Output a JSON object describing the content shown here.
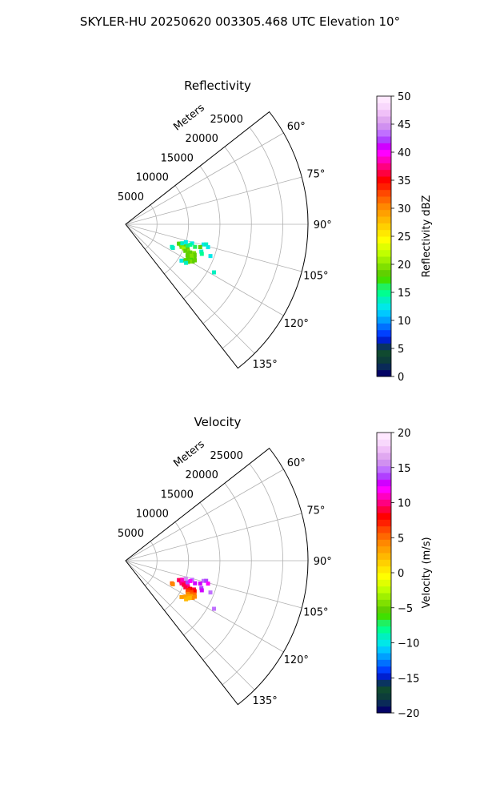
{
  "figure_title": "SKYLER-HU  20250620  003305.468 UTC Elevation 10°",
  "chart_data": [
    {
      "type": "scatter",
      "projection": "polar-sector",
      "title": "Reflectivity",
      "range_label": "Meters",
      "radial_ticks": [
        5000,
        10000,
        15000,
        20000,
        25000
      ],
      "radial_tick_labels": [
        "5000",
        "10000",
        "15000",
        "20000",
        "25000"
      ],
      "rmax": 29000,
      "theta_min_deg": 52,
      "theta_max_deg": 142,
      "theta_ticks": [
        60,
        75,
        90,
        105,
        120,
        135
      ],
      "theta_tick_labels": [
        "60°",
        "75°",
        "90°",
        "105°",
        "120°",
        "135°"
      ],
      "grid": true,
      "colorbar": {
        "label": "Reflectivity dBZ",
        "min": 0,
        "max": 50,
        "ticks": [
          0,
          5,
          10,
          15,
          20,
          25,
          30,
          35,
          40,
          45,
          50
        ],
        "tick_labels": [
          "0",
          "5",
          "10",
          "15",
          "20",
          "25",
          "30",
          "35",
          "40",
          "45",
          "50"
        ],
        "colors": [
          "#040466",
          "#0a2a58",
          "#0d3d3a",
          "#104a30",
          "#0a3460",
          "#0020d0",
          "#0040ff",
          "#0070ff",
          "#00a0ff",
          "#00c8ff",
          "#00e8e8",
          "#00f0c0",
          "#00ff90",
          "#20f060",
          "#40e000",
          "#60d000",
          "#80e000",
          "#a0f000",
          "#c0ff00",
          "#e0ff00",
          "#ffff00",
          "#ffe800",
          "#ffd000",
          "#ffb800",
          "#ffa000",
          "#ff8800",
          "#ff6800",
          "#ff4800",
          "#ff2000",
          "#ff0000",
          "#ff0040",
          "#ff0080",
          "#ff00c0",
          "#ff00ff",
          "#d000ff",
          "#b040ff",
          "#c070ff",
          "#d090f0",
          "#e0a8f0",
          "#f0c0f8",
          "#f8d8fc",
          "#ffe8ff"
        ]
      },
      "points": [
        {
          "az": 110.0,
          "r": 9000,
          "v": 18
        },
        {
          "az": 110.5,
          "r": 9400,
          "v": 19
        },
        {
          "az": 111.0,
          "r": 9800,
          "v": 20
        },
        {
          "az": 109.5,
          "r": 9200,
          "v": 17
        },
        {
          "az": 110.2,
          "r": 10200,
          "v": 18
        },
        {
          "az": 111.5,
          "r": 10600,
          "v": 19
        },
        {
          "az": 112.0,
          "r": 9600,
          "v": 20
        },
        {
          "az": 112.5,
          "r": 10000,
          "v": 21
        },
        {
          "az": 108.5,
          "r": 9500,
          "v": 14
        },
        {
          "az": 109.0,
          "r": 10400,
          "v": 16
        },
        {
          "az": 113.0,
          "r": 10800,
          "v": 20
        },
        {
          "az": 113.5,
          "r": 11200,
          "v": 19
        },
        {
          "az": 114.0,
          "r": 10400,
          "v": 18
        },
        {
          "az": 112.8,
          "r": 11800,
          "v": 20
        },
        {
          "az": 113.8,
          "r": 12000,
          "v": 19
        },
        {
          "az": 115.0,
          "r": 11000,
          "v": 18
        },
        {
          "az": 115.5,
          "r": 11600,
          "v": 20
        },
        {
          "az": 116.0,
          "r": 12200,
          "v": 19
        },
        {
          "az": 116.5,
          "r": 11000,
          "v": 18
        },
        {
          "az": 117.0,
          "r": 11800,
          "v": 20
        },
        {
          "az": 117.5,
          "r": 12400,
          "v": 19
        },
        {
          "az": 118.0,
          "r": 11200,
          "v": 18
        },
        {
          "az": 118.5,
          "r": 11800,
          "v": 17
        },
        {
          "az": 119.0,
          "r": 12200,
          "v": 19
        },
        {
          "az": 119.5,
          "r": 11400,
          "v": 18
        },
        {
          "az": 120.0,
          "r": 11800,
          "v": 20
        },
        {
          "az": 120.5,
          "r": 11200,
          "v": 17
        },
        {
          "az": 121.0,
          "r": 11600,
          "v": 19
        },
        {
          "az": 121.5,
          "r": 11000,
          "v": 18
        },
        {
          "az": 122.5,
          "r": 11400,
          "v": 14
        },
        {
          "az": 106.5,
          "r": 10000,
          "v": 12
        },
        {
          "az": 106.0,
          "r": 11000,
          "v": 13
        },
        {
          "az": 107.5,
          "r": 10800,
          "v": 15
        },
        {
          "az": 108.0,
          "r": 11600,
          "v": 16
        },
        {
          "az": 104.5,
          "r": 12800,
          "v": 12
        },
        {
          "az": 104.0,
          "r": 13200,
          "v": 14
        },
        {
          "az": 105.5,
          "r": 13600,
          "v": 13
        },
        {
          "az": 110.5,
          "r": 14400,
          "v": 13
        },
        {
          "az": 116.0,
          "r": 8200,
          "v": 14
        },
        {
          "az": 116.5,
          "r": 8400,
          "v": 14
        },
        {
          "az": 118.5,
          "r": 16000,
          "v": 14
        },
        {
          "az": 123.0,
          "r": 10600,
          "v": 13
        },
        {
          "az": 107.0,
          "r": 12400,
          "v": 18
        },
        {
          "az": 109.8,
          "r": 12800,
          "v": 14
        },
        {
          "az": 111.2,
          "r": 13000,
          "v": 15
        }
      ]
    },
    {
      "type": "scatter",
      "projection": "polar-sector",
      "title": "Velocity",
      "range_label": "Meters",
      "radial_ticks": [
        5000,
        10000,
        15000,
        20000,
        25000
      ],
      "radial_tick_labels": [
        "5000",
        "10000",
        "15000",
        "20000",
        "25000"
      ],
      "rmax": 29000,
      "theta_min_deg": 52,
      "theta_max_deg": 142,
      "theta_ticks": [
        60,
        75,
        90,
        105,
        120,
        135
      ],
      "theta_tick_labels": [
        "60°",
        "75°",
        "90°",
        "105°",
        "120°",
        "135°"
      ],
      "grid": true,
      "colorbar": {
        "label": "Velocity (m/s)",
        "min": -20,
        "max": 20,
        "ticks": [
          -20,
          -15,
          -10,
          -5,
          0,
          5,
          10,
          15,
          20
        ],
        "tick_labels": [
          "−20",
          "−15",
          "−10",
          "−5",
          "0",
          "5",
          "10",
          "15",
          "20"
        ],
        "colors": [
          "#040466",
          "#0a2a58",
          "#0d3d3a",
          "#104a30",
          "#0a3460",
          "#0020d0",
          "#0040ff",
          "#0070ff",
          "#00a0ff",
          "#00c8ff",
          "#00e8e8",
          "#00f0c0",
          "#00ff90",
          "#20f060",
          "#40e000",
          "#60d000",
          "#80e000",
          "#a0f000",
          "#c0ff00",
          "#e0ff00",
          "#ffff00",
          "#ffe800",
          "#ffd000",
          "#ffb800",
          "#ffa000",
          "#ff8800",
          "#ff6800",
          "#ff4800",
          "#ff2000",
          "#ff0000",
          "#ff0040",
          "#ff0080",
          "#ff00c0",
          "#ff00ff",
          "#d000ff",
          "#b040ff",
          "#c070ff",
          "#d090f0",
          "#e0a8f0",
          "#f0c0f8",
          "#f8d8fc",
          "#ffe8ff"
        ]
      },
      "points": [
        {
          "az": 110.0,
          "r": 9000,
          "v": 10
        },
        {
          "az": 110.5,
          "r": 9400,
          "v": 11
        },
        {
          "az": 111.0,
          "r": 9800,
          "v": 10
        },
        {
          "az": 109.5,
          "r": 9200,
          "v": 9
        },
        {
          "az": 110.2,
          "r": 10200,
          "v": 10
        },
        {
          "az": 111.5,
          "r": 10600,
          "v": 11
        },
        {
          "az": 112.0,
          "r": 9600,
          "v": 10
        },
        {
          "az": 112.5,
          "r": 10000,
          "v": 9
        },
        {
          "az": 108.5,
          "r": 9500,
          "v": 11
        },
        {
          "az": 109.0,
          "r": 10400,
          "v": 14
        },
        {
          "az": 113.0,
          "r": 10800,
          "v": 10
        },
        {
          "az": 113.5,
          "r": 11200,
          "v": 8
        },
        {
          "az": 114.0,
          "r": 10400,
          "v": 9
        },
        {
          "az": 112.8,
          "r": 11800,
          "v": 9
        },
        {
          "az": 113.8,
          "r": 12000,
          "v": 8
        },
        {
          "az": 115.0,
          "r": 11000,
          "v": 7
        },
        {
          "az": 115.5,
          "r": 11600,
          "v": 6
        },
        {
          "az": 116.0,
          "r": 12200,
          "v": 5
        },
        {
          "az": 116.5,
          "r": 11000,
          "v": 6
        },
        {
          "az": 117.0,
          "r": 11800,
          "v": 5
        },
        {
          "az": 117.5,
          "r": 12400,
          "v": 4
        },
        {
          "az": 118.0,
          "r": 11200,
          "v": 4
        },
        {
          "az": 118.5,
          "r": 11800,
          "v": 3
        },
        {
          "az": 119.0,
          "r": 12200,
          "v": 4
        },
        {
          "az": 119.5,
          "r": 11400,
          "v": 3
        },
        {
          "az": 120.0,
          "r": 11800,
          "v": 2
        },
        {
          "az": 120.5,
          "r": 11200,
          "v": 3
        },
        {
          "az": 121.0,
          "r": 11600,
          "v": 2
        },
        {
          "az": 121.5,
          "r": 11000,
          "v": 3
        },
        {
          "az": 122.5,
          "r": 11400,
          "v": 2
        },
        {
          "az": 106.5,
          "r": 10000,
          "v": 16
        },
        {
          "az": 106.0,
          "r": 11000,
          "v": 15
        },
        {
          "az": 107.5,
          "r": 10800,
          "v": 12
        },
        {
          "az": 108.0,
          "r": 11600,
          "v": 13
        },
        {
          "az": 104.5,
          "r": 12800,
          "v": 15
        },
        {
          "az": 104.0,
          "r": 13200,
          "v": 14
        },
        {
          "az": 105.5,
          "r": 13600,
          "v": 12
        },
        {
          "az": 110.5,
          "r": 14400,
          "v": 15
        },
        {
          "az": 116.0,
          "r": 8200,
          "v": 5
        },
        {
          "az": 116.5,
          "r": 8400,
          "v": 4
        },
        {
          "az": 118.5,
          "r": 16000,
          "v": 15
        },
        {
          "az": 123.0,
          "r": 10600,
          "v": 3
        },
        {
          "az": 107.0,
          "r": 12400,
          "v": 13
        },
        {
          "az": 109.8,
          "r": 12800,
          "v": 14
        },
        {
          "az": 111.2,
          "r": 13000,
          "v": 13
        }
      ]
    }
  ]
}
